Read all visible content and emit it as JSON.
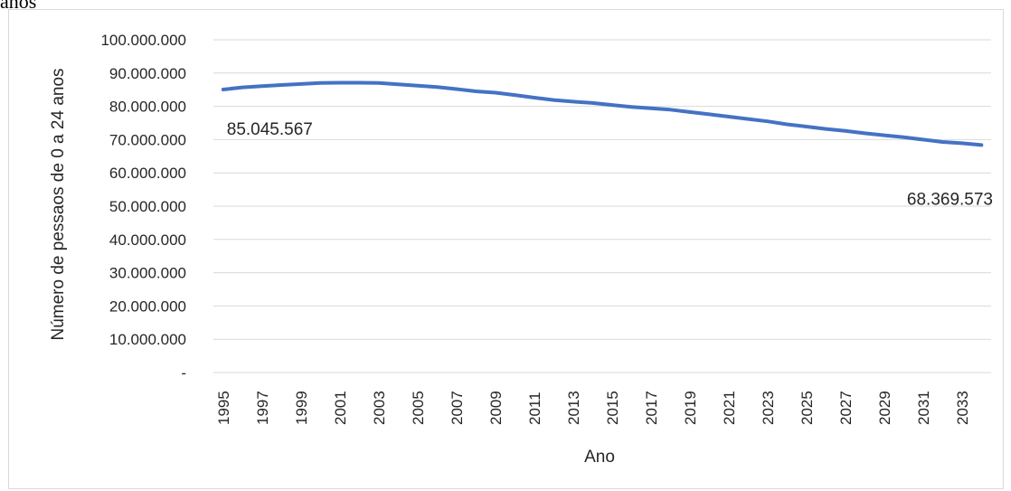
{
  "caption_fragment": "anos",
  "chart_data": {
    "type": "line",
    "title": "",
    "xlabel": "Ano",
    "ylabel": "Número de pessaos de 0 a 24 anos",
    "ylim": [
      0,
      100000000
    ],
    "y_ticks": [
      {
        "value": 100000000,
        "label": "100.000.000"
      },
      {
        "value": 90000000,
        "label": "90.000.000"
      },
      {
        "value": 80000000,
        "label": "80.000.000"
      },
      {
        "value": 70000000,
        "label": "70.000.000"
      },
      {
        "value": 60000000,
        "label": "60.000.000"
      },
      {
        "value": 50000000,
        "label": "50.000.000"
      },
      {
        "value": 40000000,
        "label": "40.000.000"
      },
      {
        "value": 30000000,
        "label": "30.000.000"
      },
      {
        "value": 20000000,
        "label": "20.000.000"
      },
      {
        "value": 10000000,
        "label": "10.000.000"
      },
      {
        "value": 0,
        "label": "-"
      }
    ],
    "x_tick_labels": [
      "1995",
      "1997",
      "1999",
      "2001",
      "2003",
      "2005",
      "2007",
      "2009",
      "2011",
      "2013",
      "2015",
      "2017",
      "2019",
      "2021",
      "2023",
      "2025",
      "2027",
      "2029",
      "2031",
      "2033"
    ],
    "x": [
      1995,
      1996,
      1997,
      1998,
      1999,
      2000,
      2001,
      2002,
      2003,
      2004,
      2005,
      2006,
      2007,
      2008,
      2009,
      2010,
      2011,
      2012,
      2013,
      2014,
      2015,
      2016,
      2017,
      2018,
      2019,
      2020,
      2021,
      2022,
      2023,
      2024,
      2025,
      2026,
      2027,
      2028,
      2029,
      2030,
      2031,
      2032,
      2033,
      2034
    ],
    "series": [
      {
        "color": "#4472c4",
        "values": [
          85045567,
          85700000,
          86100000,
          86400000,
          86700000,
          87000000,
          87100000,
          87100000,
          87000000,
          86600000,
          86200000,
          85800000,
          85200000,
          84500000,
          84100000,
          83400000,
          82600000,
          81900000,
          81400000,
          81000000,
          80400000,
          79800000,
          79400000,
          79000000,
          78300000,
          77600000,
          76900000,
          76200000,
          75500000,
          74600000,
          73900000,
          73200000,
          72600000,
          71900000,
          71300000,
          70700000,
          70000000,
          69300000,
          68900000,
          68369573
        ]
      }
    ],
    "data_labels": [
      {
        "text": "85.045.567",
        "x": 1995,
        "y": 85045567
      },
      {
        "text": "68.369.573",
        "x": 2034,
        "y": 68369573
      }
    ],
    "grid": "horizontal",
    "legend": "none",
    "colors": {
      "gridline": "#d9d9d9",
      "text": "#262626",
      "line": "#4472c4"
    }
  }
}
